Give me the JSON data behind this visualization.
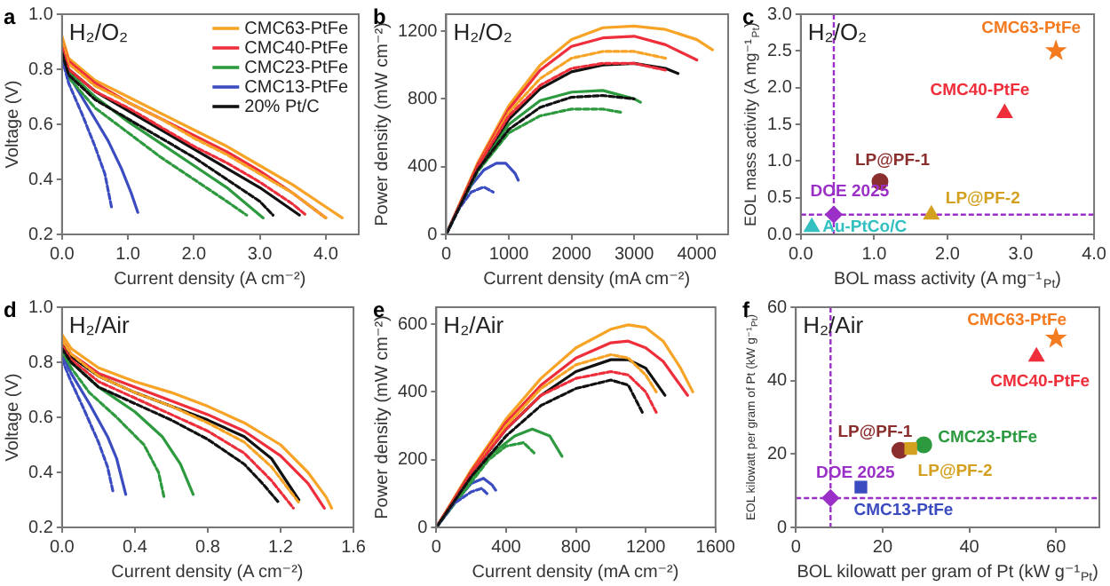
{
  "chart_data": [
    {
      "type": "line",
      "title": "a",
      "annotations": [
        "H₂/O₂"
      ],
      "xlabel": "Current density (A cm⁻²)",
      "ylabel": "Voltage (V)",
      "xlim": [
        0,
        4.5
      ],
      "ylim": [
        0.2,
        1.0
      ],
      "xticks": [
        {
          "value": 0,
          "label": "0.0"
        },
        {
          "value": 1,
          "label": "1.0"
        },
        {
          "value": 2,
          "label": "2.0"
        },
        {
          "value": 3,
          "label": "3.0"
        },
        {
          "value": 4,
          "label": "4.0"
        }
      ],
      "yticks": [
        0.2,
        0.4,
        0.6,
        0.8,
        {
          "value": 1,
          "label": "1.0"
        }
      ],
      "legend": "top right",
      "series": [
        {
          "name": "CMC63-PtFe",
          "color": "#f7a325",
          "x": [
            0,
            0.1,
            0.5,
            1,
            1.5,
            2,
            2.5,
            3,
            3.5,
            4,
            4.25
          ],
          "values": [
            0.92,
            0.84,
            0.76,
            0.7,
            0.64,
            0.58,
            0.52,
            0.45,
            0.38,
            0.3,
            0.26
          ]
        },
        {
          "name": "CMC40-PtFe",
          "color": "#ee2e3a",
          "x": [
            0,
            0.1,
            0.5,
            1,
            1.5,
            2,
            2.5,
            3,
            3.5,
            4
          ],
          "values": [
            0.9,
            0.83,
            0.75,
            0.68,
            0.62,
            0.56,
            0.5,
            0.43,
            0.35,
            0.26
          ]
        },
        {
          "name": "CMC23-PtFe",
          "color": "#2d9a3f",
          "x": [
            0,
            0.1,
            0.5,
            1,
            1.5,
            2,
            2.5,
            3.05
          ],
          "values": [
            0.87,
            0.79,
            0.7,
            0.61,
            0.53,
            0.45,
            0.37,
            0.26
          ]
        },
        {
          "name": "CMC13-PtFe",
          "color": "#3b4cc0",
          "x": [
            0,
            0.1,
            0.3,
            0.5,
            0.7,
            0.9,
            1.05,
            1.15
          ],
          "values": [
            0.86,
            0.78,
            0.7,
            0.62,
            0.54,
            0.44,
            0.35,
            0.28
          ]
        },
        {
          "name": "20% Pt/C",
          "color": "#111111",
          "x": [
            0,
            0.1,
            0.5,
            1,
            1.5,
            2,
            2.5,
            3,
            3.6
          ],
          "values": [
            0.88,
            0.8,
            0.72,
            0.65,
            0.58,
            0.51,
            0.44,
            0.37,
            0.27
          ]
        },
        {
          "color": "#f7a325",
          "line_style": "dashed",
          "x": [
            0,
            0.1,
            0.5,
            1,
            1.5,
            2,
            2.5,
            3,
            3.5,
            4
          ],
          "values": [
            0.9,
            0.82,
            0.74,
            0.68,
            0.62,
            0.55,
            0.49,
            0.42,
            0.35,
            0.26
          ]
        },
        {
          "color": "#ee2e3a",
          "line_style": "dashed",
          "x": [
            0,
            0.1,
            0.5,
            1,
            1.5,
            2,
            2.5,
            3,
            3.5,
            3.7
          ],
          "values": [
            0.88,
            0.8,
            0.72,
            0.66,
            0.59,
            0.52,
            0.46,
            0.39,
            0.31,
            0.27
          ]
        },
        {
          "color": "#2d9a3f",
          "line_style": "dashed",
          "x": [
            0,
            0.1,
            0.5,
            1,
            1.5,
            2,
            2.5,
            2.8
          ],
          "values": [
            0.85,
            0.77,
            0.66,
            0.57,
            0.48,
            0.4,
            0.32,
            0.27
          ]
        },
        {
          "color": "#3b4cc0",
          "line_style": "dashed",
          "x": [
            0,
            0.1,
            0.3,
            0.5,
            0.65,
            0.75
          ],
          "values": [
            0.84,
            0.75,
            0.64,
            0.52,
            0.42,
            0.3
          ]
        },
        {
          "color": "#111111",
          "line_style": "dashed",
          "x": [
            0,
            0.1,
            0.5,
            1,
            1.5,
            2,
            2.5,
            3,
            3.2
          ],
          "values": [
            0.86,
            0.78,
            0.69,
            0.62,
            0.55,
            0.48,
            0.4,
            0.32,
            0.27
          ]
        }
      ]
    },
    {
      "type": "line",
      "title": "b",
      "annotations": [
        "H₂/O₂"
      ],
      "xlabel": "Current density (mA cm⁻²)",
      "ylabel": "Power density (mW cm⁻²)",
      "xlim": [
        0,
        4500
      ],
      "ylim": [
        0,
        1300
      ],
      "xticks": [
        0,
        1000,
        2000,
        3000,
        4000
      ],
      "yticks": [
        0,
        400,
        800,
        1200
      ],
      "series": [
        {
          "color": "#f7a325",
          "x": [
            0,
            500,
            1000,
            1500,
            2000,
            2500,
            3000,
            3500,
            4000,
            4250
          ],
          "values": [
            0,
            420,
            760,
            1000,
            1150,
            1220,
            1230,
            1210,
            1150,
            1090
          ]
        },
        {
          "color": "#ee2e3a",
          "x": [
            0,
            500,
            1000,
            1500,
            2000,
            2500,
            3000,
            3500,
            4000
          ],
          "values": [
            0,
            410,
            740,
            970,
            1110,
            1160,
            1170,
            1120,
            1030
          ]
        },
        {
          "color": "#2d9a3f",
          "x": [
            0,
            500,
            1000,
            1500,
            2000,
            2500,
            3000,
            3100
          ],
          "values": [
            0,
            390,
            650,
            790,
            840,
            850,
            800,
            780
          ]
        },
        {
          "color": "#3b4cc0",
          "x": [
            0,
            200,
            400,
            600,
            800,
            950,
            1100,
            1150
          ],
          "values": [
            0,
            160,
            290,
            380,
            420,
            420,
            360,
            320
          ]
        },
        {
          "color": "#111111",
          "x": [
            0,
            500,
            1000,
            1500,
            2000,
            2500,
            3000,
            3500,
            3700
          ],
          "values": [
            0,
            400,
            680,
            860,
            960,
            1000,
            1010,
            980,
            950
          ]
        },
        {
          "color": "#f7a325",
          "line_style": "dashed",
          "x": [
            0,
            500,
            1000,
            1500,
            2000,
            2500,
            3000,
            3500
          ],
          "values": [
            0,
            400,
            720,
            920,
            1040,
            1080,
            1080,
            1040
          ]
        },
        {
          "color": "#ee2e3a",
          "line_style": "dashed",
          "x": [
            0,
            500,
            1000,
            1500,
            2000,
            2500,
            3000,
            3500
          ],
          "values": [
            0,
            400,
            700,
            880,
            980,
            1010,
            1010,
            970
          ]
        },
        {
          "color": "#2d9a3f",
          "line_style": "dashed",
          "x": [
            0,
            500,
            1000,
            1500,
            2000,
            2500,
            2800
          ],
          "values": [
            0,
            370,
            600,
            700,
            740,
            740,
            720
          ]
        },
        {
          "color": "#3b4cc0",
          "line_style": "dashed",
          "x": [
            0,
            200,
            400,
            600,
            750
          ],
          "values": [
            0,
            150,
            250,
            280,
            250
          ]
        },
        {
          "color": "#111111",
          "line_style": "dashed",
          "x": [
            0,
            500,
            1000,
            1500,
            2000,
            2500,
            3000
          ],
          "values": [
            0,
            380,
            620,
            750,
            810,
            820,
            800
          ]
        }
      ]
    },
    {
      "type": "scatter",
      "title": "c",
      "annotations": [
        "H₂/O₂"
      ],
      "xlabel": "BOL mass activity (A mg⁻¹$_{Pt}$)",
      "ylabel": "EOL mass activity (A mg⁻¹$_{Pt}$)",
      "xlim": [
        0,
        4
      ],
      "ylim": [
        0,
        3
      ],
      "xticks": [
        {
          "value": 0,
          "label": "0.0"
        },
        {
          "value": 1,
          "label": "1.0"
        },
        {
          "value": 2,
          "label": "2.0"
        },
        {
          "value": 3,
          "label": "3.0"
        },
        {
          "value": 4,
          "label": "4.0"
        }
      ],
      "yticks": [
        {
          "value": 0,
          "label": "0.0"
        },
        0.5,
        {
          "value": 1,
          "label": "1.0"
        },
        1.5,
        {
          "value": 2,
          "label": "2.0"
        },
        2.5,
        {
          "value": 3,
          "label": "3.0"
        }
      ],
      "ref_lines": [
        {
          "axis": "x",
          "value": 0.45,
          "color": "#9b30c8",
          "line_style": "dashed"
        },
        {
          "axis": "y",
          "value": 0.27,
          "color": "#9b30c8",
          "line_style": "dashed"
        }
      ],
      "series": [
        {
          "name": "CMC63-PtFe",
          "color": "#f47b20",
          "marker": "star",
          "x": [
            3.48
          ],
          "values": [
            2.5
          ]
        },
        {
          "name": "CMC40-PtFe",
          "color": "#ee2e3a",
          "marker": "triangle",
          "x": [
            2.78
          ],
          "values": [
            1.65
          ]
        },
        {
          "name": "LP@PF-1",
          "color": "#8b2e2e",
          "marker": "circle",
          "x": [
            1.08
          ],
          "values": [
            0.72
          ]
        },
        {
          "name": "DOE 2025",
          "color": "#9b30c8",
          "marker": "diamond",
          "x": [
            0.45
          ],
          "values": [
            0.27
          ]
        },
        {
          "name": "LP@PF-2",
          "color": "#d4a020",
          "marker": "triangle",
          "x": [
            1.78
          ],
          "values": [
            0.27
          ]
        },
        {
          "name": "Au-PtCo/C",
          "color": "#33c0c0",
          "marker": "triangle",
          "x": [
            0.15
          ],
          "values": [
            0.1
          ]
        }
      ]
    },
    {
      "type": "line",
      "title": "d",
      "annotations": [
        "H₂/Air"
      ],
      "xlabel": "Current density (A cm⁻²)",
      "ylabel": "Voltage (V)",
      "xlim": [
        0,
        1.6
      ],
      "ylim": [
        0.2,
        1.0
      ],
      "xticks": [
        {
          "value": 0,
          "label": "0.0"
        },
        0.4,
        0.8,
        1.2,
        1.6
      ],
      "yticks": [
        0.2,
        0.4,
        0.6,
        0.8,
        {
          "value": 1,
          "label": "1.0"
        }
      ],
      "series": [
        {
          "color": "#f7a325",
          "x": [
            0,
            0.05,
            0.2,
            0.4,
            0.6,
            0.8,
            1,
            1.2,
            1.35,
            1.45,
            1.48
          ],
          "values": [
            0.9,
            0.85,
            0.78,
            0.73,
            0.69,
            0.64,
            0.58,
            0.5,
            0.4,
            0.31,
            0.27
          ]
        },
        {
          "color": "#ee2e3a",
          "x": [
            0,
            0.05,
            0.2,
            0.4,
            0.6,
            0.8,
            1,
            1.2,
            1.35,
            1.44
          ],
          "values": [
            0.88,
            0.83,
            0.76,
            0.71,
            0.66,
            0.61,
            0.55,
            0.46,
            0.36,
            0.27
          ]
        },
        {
          "color": "#2d9a3f",
          "x": [
            0,
            0.05,
            0.2,
            0.4,
            0.55,
            0.65,
            0.72
          ],
          "values": [
            0.86,
            0.8,
            0.71,
            0.62,
            0.53,
            0.43,
            0.32
          ]
        },
        {
          "color": "#3b4cc0",
          "x": [
            0,
            0.05,
            0.15,
            0.25,
            0.3,
            0.35
          ],
          "values": [
            0.83,
            0.76,
            0.65,
            0.53,
            0.45,
            0.32
          ]
        },
        {
          "color": "#111111",
          "x": [
            0,
            0.05,
            0.2,
            0.4,
            0.6,
            0.8,
            1,
            1.15,
            1.3
          ],
          "values": [
            0.87,
            0.82,
            0.75,
            0.69,
            0.64,
            0.59,
            0.53,
            0.45,
            0.3
          ]
        },
        {
          "color": "#f7a325",
          "line_style": "dashed",
          "x": [
            0,
            0.05,
            0.2,
            0.4,
            0.6,
            0.8,
            1,
            1.15,
            1.3
          ],
          "values": [
            0.88,
            0.83,
            0.75,
            0.69,
            0.64,
            0.58,
            0.51,
            0.42,
            0.29
          ]
        },
        {
          "color": "#ee2e3a",
          "line_style": "dashed",
          "x": [
            0,
            0.05,
            0.2,
            0.4,
            0.6,
            0.8,
            1,
            1.15,
            1.27
          ],
          "values": [
            0.86,
            0.81,
            0.73,
            0.67,
            0.61,
            0.55,
            0.47,
            0.37,
            0.27
          ]
        },
        {
          "color": "#2d9a3f",
          "line_style": "dashed",
          "x": [
            0,
            0.05,
            0.15,
            0.3,
            0.45,
            0.53,
            0.56
          ],
          "values": [
            0.84,
            0.78,
            0.69,
            0.6,
            0.5,
            0.4,
            0.31
          ]
        },
        {
          "color": "#3b4cc0",
          "line_style": "dashed",
          "x": [
            0,
            0.05,
            0.12,
            0.2,
            0.25,
            0.28
          ],
          "values": [
            0.81,
            0.73,
            0.63,
            0.51,
            0.42,
            0.33
          ]
        },
        {
          "color": "#111111",
          "line_style": "dashed",
          "x": [
            0,
            0.05,
            0.2,
            0.4,
            0.6,
            0.8,
            1,
            1.1,
            1.19
          ],
          "values": [
            0.85,
            0.8,
            0.71,
            0.65,
            0.59,
            0.52,
            0.43,
            0.36,
            0.29
          ]
        }
      ]
    },
    {
      "type": "line",
      "title": "e",
      "annotations": [
        "H₂/Air"
      ],
      "xlabel": "Current density (mA cm⁻²)",
      "ylabel": "Power density (mW cm⁻²)",
      "xlim": [
        0,
        1600
      ],
      "ylim": [
        0,
        650
      ],
      "xticks": [
        0,
        400,
        800,
        1200,
        1600
      ],
      "yticks": [
        0,
        200,
        400,
        600
      ],
      "series": [
        {
          "color": "#f7a325",
          "x": [
            0,
            200,
            400,
            600,
            800,
            1000,
            1100,
            1200,
            1300,
            1400,
            1470
          ],
          "values": [
            0,
            170,
            320,
            440,
            530,
            585,
            598,
            590,
            550,
            470,
            400
          ]
        },
        {
          "color": "#ee2e3a",
          "x": [
            0,
            200,
            400,
            600,
            800,
            1000,
            1100,
            1200,
            1300,
            1440
          ],
          "values": [
            0,
            165,
            310,
            420,
            500,
            545,
            550,
            530,
            490,
            390
          ]
        },
        {
          "color": "#2d9a3f",
          "x": [
            0,
            150,
            300,
            450,
            550,
            650,
            720
          ],
          "values": [
            0,
            110,
            210,
            270,
            290,
            270,
            210
          ]
        },
        {
          "color": "#3b4cc0",
          "x": [
            0,
            100,
            200,
            270,
            320,
            340
          ],
          "values": [
            0,
            70,
            130,
            145,
            125,
            110
          ]
        },
        {
          "color": "#111111",
          "x": [
            0,
            200,
            400,
            600,
            800,
            1000,
            1100,
            1200,
            1310
          ],
          "values": [
            0,
            160,
            290,
            390,
            460,
            495,
            495,
            470,
            390
          ]
        },
        {
          "color": "#f7a325",
          "line_style": "dashed",
          "x": [
            0,
            200,
            400,
            600,
            800,
            1000,
            1100,
            1200,
            1260
          ],
          "values": [
            0,
            160,
            300,
            410,
            480,
            510,
            500,
            450,
            400
          ]
        },
        {
          "color": "#ee2e3a",
          "line_style": "dashed",
          "x": [
            0,
            200,
            400,
            600,
            800,
            1000,
            1100,
            1200,
            1260
          ],
          "values": [
            0,
            160,
            290,
            390,
            440,
            460,
            450,
            400,
            340
          ]
        },
        {
          "color": "#2d9a3f",
          "line_style": "dashed",
          "x": [
            0,
            150,
            300,
            400,
            500,
            560
          ],
          "values": [
            0,
            100,
            200,
            240,
            250,
            220
          ]
        },
        {
          "color": "#3b4cc0",
          "line_style": "dashed",
          "x": [
            0,
            100,
            200,
            260,
            290
          ],
          "values": [
            0,
            70,
            105,
            115,
            100
          ]
        },
        {
          "color": "#111111",
          "line_style": "dashed",
          "x": [
            0,
            200,
            400,
            600,
            800,
            1000,
            1100,
            1180
          ],
          "values": [
            0,
            150,
            270,
            360,
            410,
            435,
            420,
            340
          ]
        }
      ]
    },
    {
      "type": "scatter",
      "title": "f",
      "annotations": [
        "H₂/Air"
      ],
      "xlabel": "BOL kilowatt per gram of Pt (kW g⁻¹$_{Pt}$)",
      "ylabel": "EOL kilowatt per gram of Pt (kW g⁻¹$_{Pt}$)",
      "xlim": [
        0,
        70
      ],
      "ylim": [
        0,
        60
      ],
      "xticks": [
        0,
        20,
        40,
        60
      ],
      "yticks": [
        0,
        20,
        40,
        60
      ],
      "ref_lines": [
        {
          "axis": "x",
          "value": 8,
          "color": "#9b30c8",
          "line_style": "dashed"
        },
        {
          "axis": "y",
          "value": 8,
          "color": "#9b30c8",
          "line_style": "dashed"
        }
      ],
      "series": [
        {
          "name": "CMC63-PtFe",
          "color": "#f47b20",
          "marker": "star",
          "x": [
            60
          ],
          "values": [
            51.5
          ]
        },
        {
          "name": "CMC40-PtFe",
          "color": "#ee2e3a",
          "marker": "triangle",
          "x": [
            55.5
          ],
          "values": [
            46.5
          ]
        },
        {
          "name": "CMC23-PtFe",
          "color": "#2d9a3f",
          "marker": "circle",
          "x": [
            29.5
          ],
          "values": [
            22.5
          ]
        },
        {
          "name": "LP@PF-1",
          "color": "#8b2e2e",
          "marker": "circle",
          "x": [
            24
          ],
          "values": [
            21
          ]
        },
        {
          "name": "LP@PF-2",
          "color": "#d4a020",
          "marker": "square",
          "x": [
            26.5
          ],
          "values": [
            21.5
          ]
        },
        {
          "name": "DOE 2025",
          "color": "#9b30c8",
          "marker": "diamond",
          "x": [
            8
          ],
          "values": [
            8
          ]
        },
        {
          "name": "CMC13-PtFe",
          "color": "#3b4cc0",
          "marker": "square",
          "x": [
            15
          ],
          "values": [
            11
          ]
        }
      ]
    }
  ]
}
